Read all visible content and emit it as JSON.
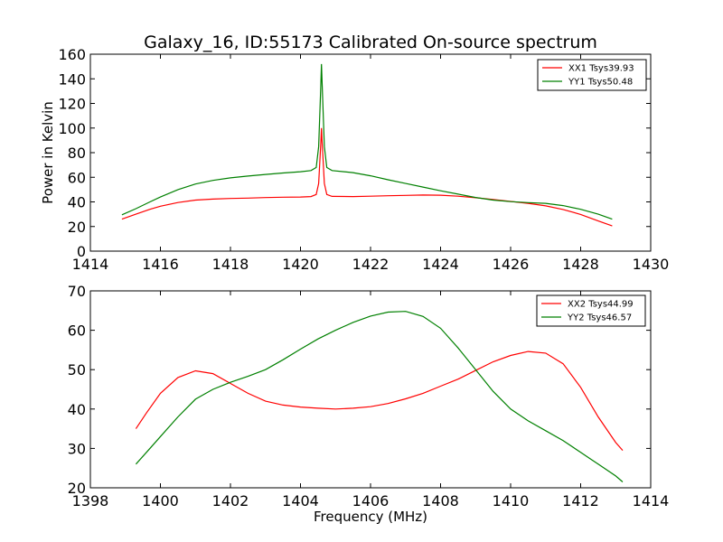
{
  "figure_title": "Galaxy_16, ID:55173 Calibrated On-source spectrum",
  "chart_data": [
    {
      "type": "line",
      "title": "Galaxy_16, ID:55173 Calibrated On-source spectrum",
      "xlabel": "",
      "ylabel": "Power in Kelvin",
      "xlim": [
        1414,
        1430
      ],
      "ylim": [
        0,
        160
      ],
      "xticks": [
        "1414",
        "1416",
        "1418",
        "1420",
        "1422",
        "1424",
        "1426",
        "1428",
        "1430"
      ],
      "yticks": [
        "0",
        "20",
        "40",
        "60",
        "80",
        "100",
        "120",
        "140",
        "160"
      ],
      "grid": false,
      "legend": "top-right",
      "series": [
        {
          "name": "XX1 Tsys39.93",
          "color": "#ff0000",
          "x": [
            1414.9,
            1415.3,
            1415.7,
            1416.0,
            1416.5,
            1417.0,
            1417.5,
            1418.0,
            1418.5,
            1419.0,
            1419.5,
            1420.0,
            1420.3,
            1420.45,
            1420.52,
            1420.58,
            1420.6,
            1420.62,
            1420.68,
            1420.75,
            1420.9,
            1421.5,
            1422.0,
            1422.5,
            1423.0,
            1423.5,
            1424.0,
            1424.5,
            1425.0,
            1425.5,
            1426.0,
            1426.5,
            1427.0,
            1427.5,
            1428.0,
            1428.5,
            1428.9
          ],
          "y": [
            26,
            30,
            34,
            36.5,
            39.5,
            41.5,
            42.3,
            42.8,
            43.1,
            43.5,
            43.8,
            44.0,
            44.3,
            46,
            55,
            88,
            100,
            88,
            55,
            46,
            44.5,
            44.3,
            44.6,
            45.0,
            45.3,
            45.6,
            45.4,
            44.6,
            43.4,
            42.0,
            40.4,
            38.8,
            36.8,
            33.8,
            29.8,
            24.5,
            20.5
          ]
        },
        {
          "name": "YY1 Tsys50.48",
          "color": "#008000",
          "x": [
            1414.9,
            1415.3,
            1415.7,
            1416.0,
            1416.5,
            1417.0,
            1417.5,
            1418.0,
            1418.5,
            1419.0,
            1419.5,
            1420.0,
            1420.3,
            1420.45,
            1420.52,
            1420.58,
            1420.6,
            1420.62,
            1420.68,
            1420.75,
            1420.9,
            1421.5,
            1422.0,
            1422.5,
            1423.0,
            1423.5,
            1424.0,
            1424.5,
            1425.0,
            1425.5,
            1426.0,
            1426.5,
            1427.0,
            1427.5,
            1428.0,
            1428.5,
            1428.9
          ],
          "y": [
            29.5,
            34.5,
            40,
            44,
            50,
            54.5,
            57.5,
            59.5,
            61,
            62.3,
            63.5,
            64.5,
            65.5,
            68,
            85,
            135,
            152,
            135,
            85,
            68,
            65.5,
            63.8,
            61.2,
            58,
            55,
            52,
            49,
            46.3,
            43.6,
            41.5,
            40.2,
            39.4,
            38.8,
            37,
            34,
            30,
            26
          ]
        }
      ]
    },
    {
      "type": "line",
      "title": "",
      "xlabel": "Frequency (MHz)",
      "ylabel": "",
      "xlim": [
        1398,
        1414
      ],
      "ylim": [
        20,
        70
      ],
      "xticks": [
        "1398",
        "1400",
        "1402",
        "1404",
        "1406",
        "1408",
        "1410",
        "1412",
        "1414"
      ],
      "yticks": [
        "20",
        "30",
        "40",
        "50",
        "60",
        "70"
      ],
      "grid": false,
      "legend": "top-right",
      "series": [
        {
          "name": "XX2 Tsys44.99",
          "color": "#ff0000",
          "x": [
            1399.3,
            1399.6,
            1400.0,
            1400.5,
            1401.0,
            1401.5,
            1402.0,
            1402.5,
            1403.0,
            1403.5,
            1404.0,
            1404.5,
            1405.0,
            1405.5,
            1406.0,
            1406.5,
            1407.0,
            1407.5,
            1408.0,
            1408.5,
            1409.0,
            1409.5,
            1410.0,
            1410.5,
            1411.0,
            1411.5,
            1412.0,
            1412.5,
            1413.0,
            1413.2
          ],
          "y": [
            35,
            39,
            44,
            48,
            49.7,
            49,
            46.5,
            44,
            42,
            41,
            40.5,
            40.2,
            40,
            40.2,
            40.6,
            41.4,
            42.6,
            44,
            45.8,
            47.6,
            49.8,
            52,
            53.6,
            54.6,
            54.2,
            51.5,
            45.5,
            38,
            31.5,
            29.5
          ]
        },
        {
          "name": "YY2 Tsys46.57",
          "color": "#008000",
          "x": [
            1399.3,
            1399.6,
            1400.0,
            1400.5,
            1401.0,
            1401.5,
            1402.0,
            1402.5,
            1403.0,
            1403.5,
            1404.0,
            1404.5,
            1405.0,
            1405.5,
            1406.0,
            1406.5,
            1407.0,
            1407.5,
            1408.0,
            1408.5,
            1409.0,
            1409.5,
            1410.0,
            1410.5,
            1411.0,
            1411.5,
            1412.0,
            1412.5,
            1413.0,
            1413.2
          ],
          "y": [
            26,
            29,
            33,
            38,
            42.5,
            45,
            46.8,
            48.3,
            50,
            52.5,
            55.2,
            57.8,
            60,
            62,
            63.6,
            64.6,
            64.8,
            63.5,
            60.5,
            55.5,
            50,
            44.5,
            40,
            37,
            34.5,
            32,
            29,
            26,
            23,
            21.5
          ]
        }
      ]
    }
  ]
}
